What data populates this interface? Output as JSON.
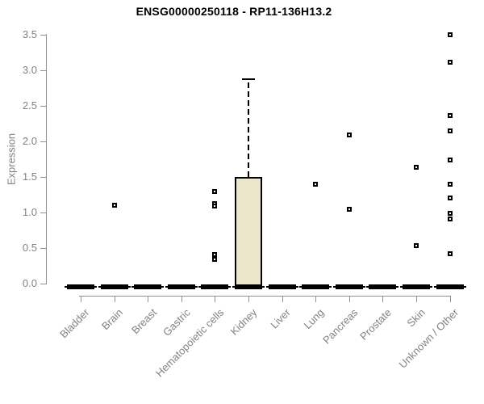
{
  "chart_data": {
    "type": "boxplot",
    "title": "ENSG00000250118 - RP11-136H13.2",
    "ylabel": "Expression",
    "xlabel": "",
    "ylim": [
      0,
      3.5
    ],
    "yticks": [
      "0.0",
      "0.5",
      "1.0",
      "1.5",
      "2.0",
      "2.5",
      "3.0",
      "3.5"
    ],
    "grid": false,
    "legend": "none",
    "categories": [
      "Bladder",
      "Brain",
      "Breast",
      "Gastric",
      "Hematopoietic cells",
      "Kidney",
      "Liver",
      "Lung",
      "Pancreas",
      "Prostate",
      "Skin",
      "Unknown / Other"
    ],
    "boxes": [
      {
        "category": "Bladder",
        "q1": 0,
        "median": 0,
        "q3": 0,
        "whisker_low": 0,
        "whisker_high": 0,
        "outliers": []
      },
      {
        "category": "Brain",
        "q1": 0,
        "median": 0,
        "q3": 0,
        "whisker_low": 0,
        "whisker_high": 0,
        "outliers": [
          1.1
        ]
      },
      {
        "category": "Breast",
        "q1": 0,
        "median": 0,
        "q3": 0,
        "whisker_low": 0,
        "whisker_high": 0,
        "outliers": []
      },
      {
        "category": "Gastric",
        "q1": 0,
        "median": 0,
        "q3": 0,
        "whisker_low": 0,
        "whisker_high": 0,
        "outliers": []
      },
      {
        "category": "Hematopoietic cells",
        "q1": 0,
        "median": 0,
        "q3": 0,
        "whisker_low": 0,
        "whisker_high": 0,
        "outliers": [
          1.3,
          1.13,
          1.09,
          0.41,
          0.34
        ]
      },
      {
        "category": "Kidney",
        "q1": 0,
        "median": 0,
        "q3": 1.5,
        "whisker_low": 0,
        "whisker_high": 2.88,
        "outliers": []
      },
      {
        "category": "Liver",
        "q1": 0,
        "median": 0,
        "q3": 0,
        "whisker_low": 0,
        "whisker_high": 0,
        "outliers": []
      },
      {
        "category": "Lung",
        "q1": 0,
        "median": 0,
        "q3": 0,
        "whisker_low": 0,
        "whisker_high": 0,
        "outliers": [
          1.4
        ]
      },
      {
        "category": "Pancreas",
        "q1": 0,
        "median": 0,
        "q3": 0,
        "whisker_low": 0,
        "whisker_high": 0,
        "outliers": [
          2.09,
          1.05
        ]
      },
      {
        "category": "Prostate",
        "q1": 0,
        "median": 0,
        "q3": 0,
        "whisker_low": 0,
        "whisker_high": 0,
        "outliers": []
      },
      {
        "category": "Skin",
        "q1": 0,
        "median": 0,
        "q3": 0,
        "whisker_low": 0,
        "whisker_high": 0,
        "outliers": [
          1.64,
          0.53
        ]
      },
      {
        "category": "Unknown / Other",
        "q1": 0,
        "median": 0,
        "q3": 0,
        "whisker_low": 0,
        "whisker_high": 0,
        "outliers": [
          3.5,
          3.11,
          2.36,
          2.15,
          1.74,
          1.4,
          1.2,
          0.99,
          0.91,
          0.42
        ]
      }
    ],
    "colors": {
      "box_fill": "#EBE6CC",
      "box_border": "#000000",
      "points": "#000000",
      "axis_line": "#919191",
      "tick_text": "#828282",
      "title_text": "#000000"
    }
  }
}
